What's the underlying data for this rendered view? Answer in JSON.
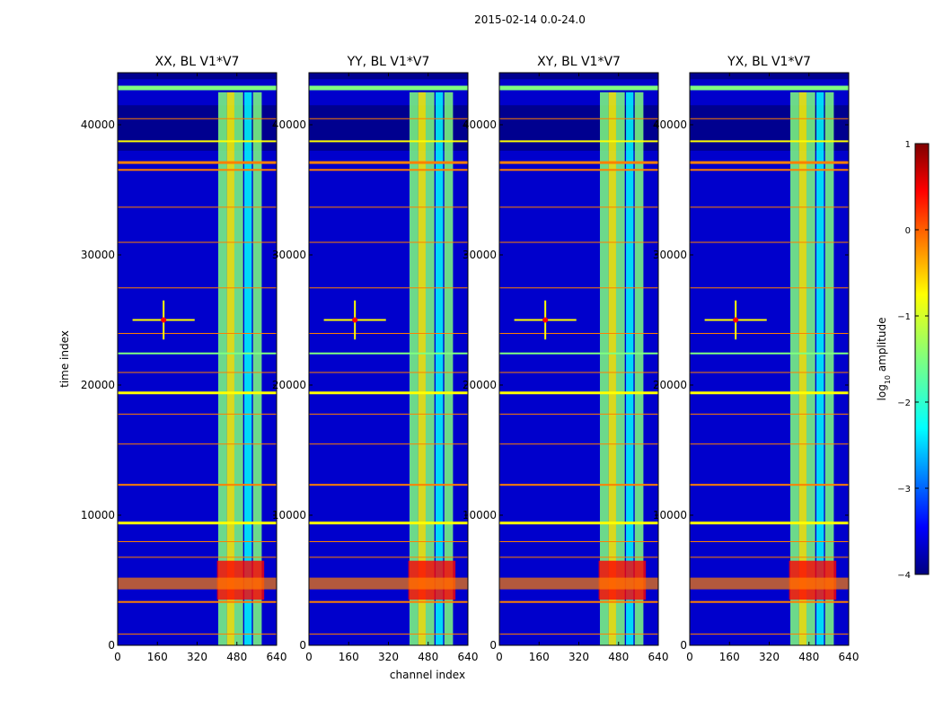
{
  "suptitle": "2015-02-14 0.0-24.0",
  "chart_data": {
    "type": "heatmap",
    "ylabel": "time index",
    "xlabel": "channel index",
    "xlim": [
      0,
      640
    ],
    "ylim": [
      0,
      44000
    ],
    "xticks": [
      0,
      160,
      320,
      480,
      640
    ],
    "yticks": [
      0,
      10000,
      20000,
      30000,
      40000
    ],
    "panels": [
      {
        "title": "XX, BL V1*V7"
      },
      {
        "title": "YY, BL V1*V7"
      },
      {
        "title": "XY, BL V1*V7"
      },
      {
        "title": "YX, BL V1*V7"
      }
    ],
    "colorbar": {
      "label": "log10 amplitude",
      "label_base": "log",
      "label_sub": "10",
      "label_rest": " amplitude",
      "range": [
        -4,
        1
      ],
      "ticks": [
        1,
        0,
        -1,
        -2,
        -3,
        -4
      ],
      "colormap": "jet"
    }
  },
  "colors": {
    "background": "#00008f",
    "jet": [
      "#00007f",
      "#0000ff",
      "#007fff",
      "#00ffff",
      "#7fff7f",
      "#ffff00",
      "#ff7f00",
      "#ff0000",
      "#7f0000"
    ]
  }
}
